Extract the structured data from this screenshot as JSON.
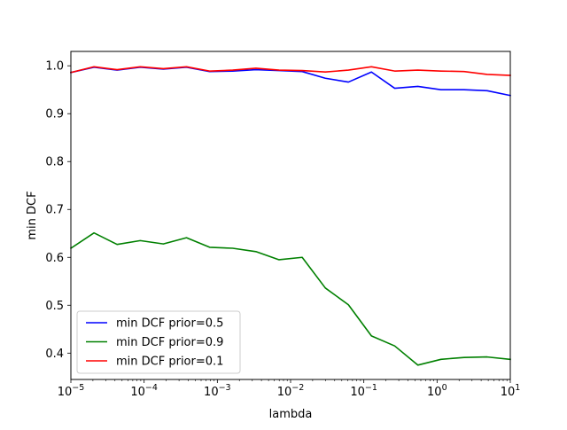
{
  "chart_data": {
    "type": "line",
    "title": "",
    "xlabel": "lambda",
    "ylabel": "min DCF",
    "xscale": "log",
    "xlim": [
      1e-05,
      10
    ],
    "ylim": [
      0.345,
      1.03
    ],
    "grid": false,
    "legend_position": "lower-left",
    "x_ticks": [
      {
        "value": 1e-05,
        "base": "10",
        "exp": "−5"
      },
      {
        "value": 0.0001,
        "base": "10",
        "exp": "−4"
      },
      {
        "value": 0.001,
        "base": "10",
        "exp": "−3"
      },
      {
        "value": 0.01,
        "base": "10",
        "exp": "−2"
      },
      {
        "value": 0.1,
        "base": "10",
        "exp": "−1"
      },
      {
        "value": 1,
        "base": "10",
        "exp": "0"
      },
      {
        "value": 10,
        "base": "10",
        "exp": "1"
      }
    ],
    "y_ticks": [
      {
        "value": 0.4,
        "label": "0.4"
      },
      {
        "value": 0.5,
        "label": "0.5"
      },
      {
        "value": 0.6,
        "label": "0.6"
      },
      {
        "value": 0.7,
        "label": "0.7"
      },
      {
        "value": 0.8,
        "label": "0.8"
      },
      {
        "value": 0.9,
        "label": "0.9"
      },
      {
        "value": 1.0,
        "label": "1.0"
      }
    ],
    "x": [
      1e-05,
      2.07e-05,
      4.28e-05,
      8.86e-05,
      0.000183,
      0.000379,
      0.000785,
      0.00162,
      0.00336,
      0.00695,
      0.0144,
      0.0298,
      0.0616,
      0.127,
      0.264,
      0.546,
      1.13,
      2.34,
      4.83,
      10
    ],
    "series": [
      {
        "name": "min DCF prior=0.5",
        "color": "#0000ff",
        "values": [
          0.986,
          0.997,
          0.991,
          0.997,
          0.993,
          0.997,
          0.988,
          0.989,
          0.992,
          0.99,
          0.988,
          0.974,
          0.966,
          0.987,
          0.953,
          0.957,
          0.95,
          0.95,
          0.948,
          0.938
        ]
      },
      {
        "name": "min DCF prior=0.9",
        "color": "#008000",
        "values": [
          0.619,
          0.651,
          0.627,
          0.635,
          0.628,
          0.641,
          0.621,
          0.619,
          0.612,
          0.595,
          0.6,
          0.536,
          0.501,
          0.436,
          0.415,
          0.375,
          0.387,
          0.391,
          0.392,
          0.387
        ]
      },
      {
        "name": "min DCF prior=0.1",
        "color": "#ff0000",
        "values": [
          0.986,
          0.998,
          0.992,
          0.998,
          0.994,
          0.998,
          0.989,
          0.991,
          0.995,
          0.991,
          0.99,
          0.987,
          0.991,
          0.998,
          0.989,
          0.991,
          0.989,
          0.988,
          0.982,
          0.98
        ]
      }
    ]
  }
}
